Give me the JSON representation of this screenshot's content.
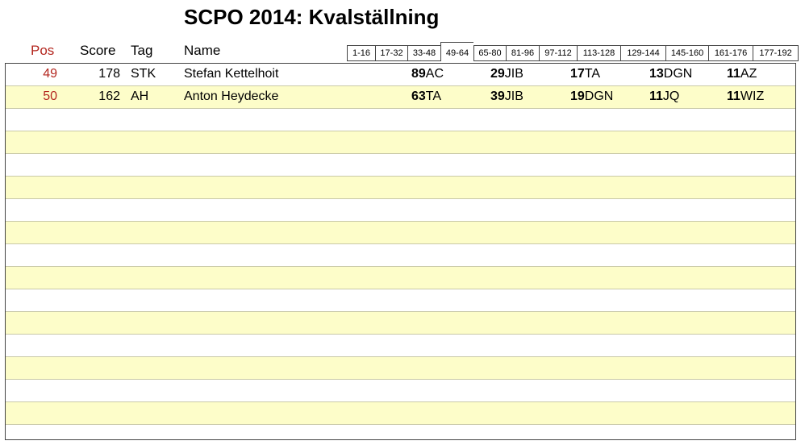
{
  "title": "SCPO 2014: Kvalställning",
  "columns": {
    "pos": "Pos",
    "score": "Score",
    "tag": "Tag",
    "name": "Name"
  },
  "tabs": [
    "1-16",
    "17-32",
    "33-48",
    "49-64",
    "65-80",
    "81-96",
    "97-112",
    "113-128",
    "129-144",
    "145-160",
    "161-176",
    "177-192"
  ],
  "active_tab": "49-64",
  "rows": [
    {
      "pos": "49",
      "score": "178",
      "tag": "STK",
      "name": "Stefan Kettelhoit",
      "games": [
        {
          "pts": "89",
          "game": "AC"
        },
        {
          "pts": "29",
          "game": "JIB"
        },
        {
          "pts": "17",
          "game": "TA"
        },
        {
          "pts": "13",
          "game": "DGN"
        },
        {
          "pts": "11",
          "game": "AZ"
        }
      ]
    },
    {
      "pos": "50",
      "score": "162",
      "tag": "AH",
      "name": "Anton Heydecke",
      "games": [
        {
          "pts": "63",
          "game": "TA"
        },
        {
          "pts": "39",
          "game": "JIB"
        },
        {
          "pts": "19",
          "game": "DGN"
        },
        {
          "pts": "11",
          "game": "JQ"
        },
        {
          "pts": "11",
          "game": "WIZ"
        }
      ]
    }
  ],
  "colors": {
    "pos": "#b3261e",
    "alt_row": "#fdfdc9",
    "border": "#444444"
  }
}
